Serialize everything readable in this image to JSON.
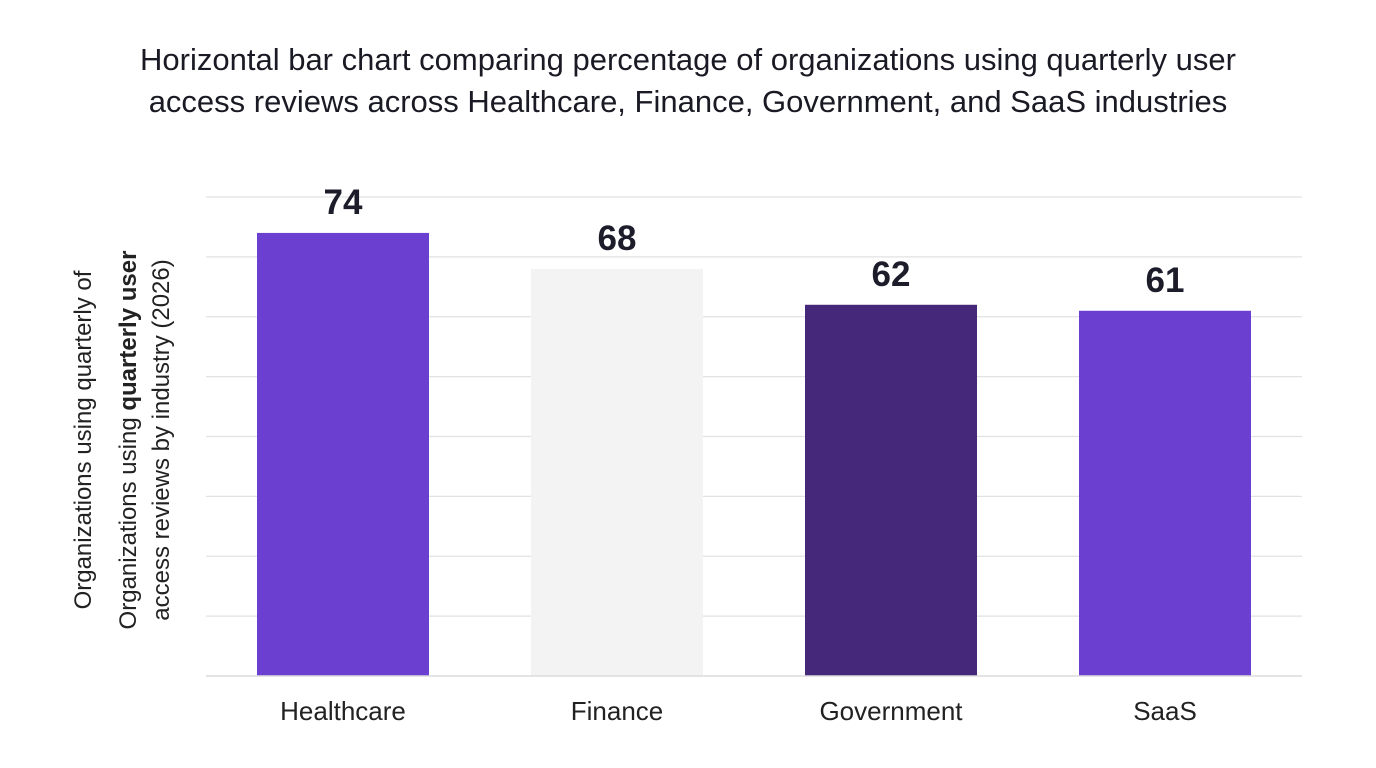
{
  "chart_data": {
    "type": "bar",
    "title": [
      "Horizontal bar chart comparing percentage of organizations using quarterly user",
      "access reviews across Healthcare, Finance, Government, and SaaS industries"
    ],
    "ylabel": [
      [
        {
          "text": "Organizations using quarterly of"
        }
      ],
      [
        {
          "text": "Organizations using "
        },
        {
          "text": "quarterly user",
          "bold": true
        }
      ],
      [
        {
          "text": "access reviews by industry (2026)"
        }
      ]
    ],
    "categories": [
      "Healthcare",
      "Finance",
      "Government",
      "SaaS"
    ],
    "values": [
      74,
      68,
      62,
      61
    ],
    "colors": [
      "#6b3fd0",
      "#f3f3f3",
      "#45287a",
      "#6b3fd0"
    ],
    "ylim": [
      0,
      80
    ],
    "yticks": [
      0,
      10,
      20,
      30,
      40,
      50,
      60,
      70,
      80
    ],
    "grid": true
  }
}
